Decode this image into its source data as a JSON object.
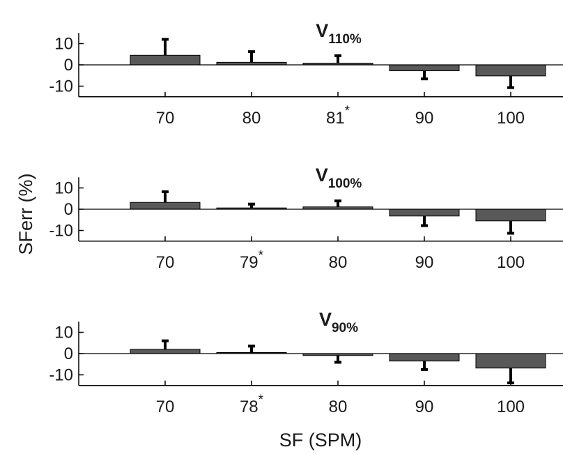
{
  "chart_data": {
    "type": "bar",
    "xlabel": "SF (SPM)",
    "ylabel": "SFerr (%)",
    "yticks": [
      10,
      0,
      -10
    ],
    "ylim": [
      -15,
      15
    ],
    "bar_color": "#595959",
    "panels": [
      {
        "title_main": "V",
        "title_sub": "110%",
        "categories": [
          {
            "label": "70",
            "star": ""
          },
          {
            "label": "80",
            "star": ""
          },
          {
            "label": "81",
            "star": "*"
          },
          {
            "label": "90",
            "star": ""
          },
          {
            "label": "100",
            "star": ""
          }
        ],
        "values": [
          4.5,
          1.2,
          0.8,
          -2.8,
          -5.2
        ],
        "errors": [
          7.5,
          5.0,
          3.5,
          3.8,
          5.5
        ]
      },
      {
        "title_main": "V",
        "title_sub": "100%",
        "categories": [
          {
            "label": "70",
            "star": ""
          },
          {
            "label": "79",
            "star": "*"
          },
          {
            "label": "80",
            "star": ""
          },
          {
            "label": "90",
            "star": ""
          },
          {
            "label": "100",
            "star": ""
          }
        ],
        "values": [
          3.2,
          0.6,
          1.1,
          -3.2,
          -5.5
        ],
        "errors": [
          5.0,
          1.8,
          2.8,
          4.5,
          5.8
        ]
      },
      {
        "title_main": "V",
        "title_sub": "90%",
        "categories": [
          {
            "label": "70",
            "star": ""
          },
          {
            "label": "78",
            "star": "*"
          },
          {
            "label": "80",
            "star": ""
          },
          {
            "label": "90",
            "star": ""
          },
          {
            "label": "100",
            "star": ""
          }
        ],
        "values": [
          2.0,
          0.5,
          -0.9,
          -3.5,
          -6.8
        ],
        "errors": [
          4.0,
          3.0,
          3.2,
          4.0,
          7.0
        ]
      }
    ]
  }
}
